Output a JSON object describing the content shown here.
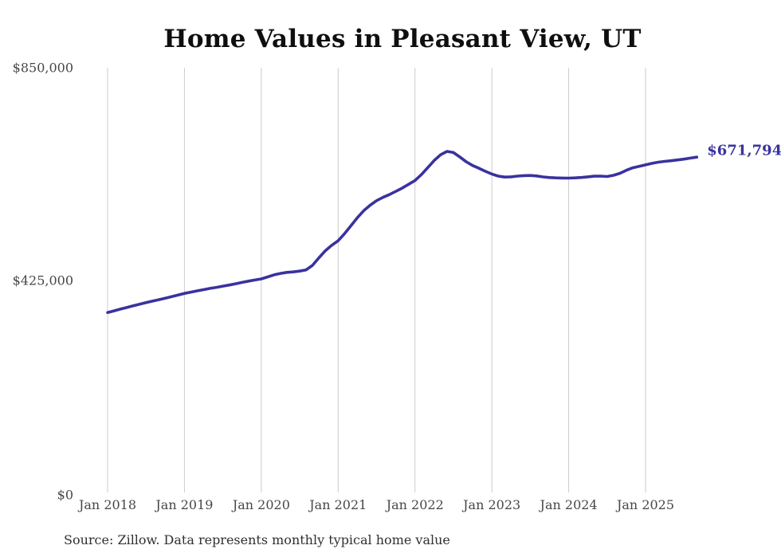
{
  "title": "Home Values in Pleasant View, UT",
  "end_label": "$671,794",
  "source_note": "Source: Zillow. Data represents monthly typical home value",
  "y_axis": {
    "labels": [
      "$850,000",
      "$425,000",
      "$0"
    ],
    "values": [
      850000,
      425000,
      0
    ]
  },
  "x_axis": {
    "labels": [
      "Jan 2018",
      "Jan 2019",
      "Jan 2020",
      "Jan 2021",
      "Jan 2022",
      "Jan 2023",
      "Jan 2024",
      "Jan 2025"
    ]
  },
  "colors": {
    "line": "#39329e",
    "grid": "#cccccc",
    "axis_text": "#474747",
    "title_text": "#0f0f0f",
    "source_text": "#303030",
    "background": "#ffffff"
  },
  "chart_data": {
    "type": "line",
    "title": "Home Values in Pleasant View, UT",
    "series_name": "Monthly typical home value",
    "xlabel": "",
    "ylabel": "",
    "ylim": [
      0,
      850000
    ],
    "yticks": [
      0,
      425000,
      850000
    ],
    "ytick_labels": [
      "$0",
      "$425,000",
      "$850,000"
    ],
    "xtick_labels": [
      "Jan 2018",
      "Jan 2019",
      "Jan 2020",
      "Jan 2021",
      "Jan 2022",
      "Jan 2023",
      "Jan 2024",
      "Jan 2025"
    ],
    "grid": "vertical-only",
    "legend": "none",
    "last_point_label": "$671,794",
    "x": [
      "2018-01",
      "2018-02",
      "2018-03",
      "2018-04",
      "2018-05",
      "2018-06",
      "2018-07",
      "2018-08",
      "2018-09",
      "2018-10",
      "2018-11",
      "2018-12",
      "2019-01",
      "2019-02",
      "2019-03",
      "2019-04",
      "2019-05",
      "2019-06",
      "2019-07",
      "2019-08",
      "2019-09",
      "2019-10",
      "2019-11",
      "2019-12",
      "2020-01",
      "2020-02",
      "2020-03",
      "2020-04",
      "2020-05",
      "2020-06",
      "2020-07",
      "2020-08",
      "2020-09",
      "2020-10",
      "2020-11",
      "2020-12",
      "2021-01",
      "2021-02",
      "2021-03",
      "2021-04",
      "2021-05",
      "2021-06",
      "2021-07",
      "2021-08",
      "2021-09",
      "2021-10",
      "2021-11",
      "2021-12",
      "2022-01",
      "2022-02",
      "2022-03",
      "2022-04",
      "2022-05",
      "2022-06",
      "2022-07",
      "2022-08",
      "2022-09",
      "2022-10",
      "2022-11",
      "2022-12",
      "2023-01",
      "2023-02",
      "2023-03",
      "2023-04",
      "2023-05",
      "2023-06",
      "2023-07",
      "2023-08",
      "2023-09",
      "2023-10",
      "2023-11",
      "2023-12",
      "2024-01",
      "2024-02",
      "2024-03",
      "2024-04",
      "2024-05",
      "2024-06",
      "2024-07",
      "2024-08",
      "2024-09",
      "2024-10",
      "2024-11",
      "2024-12",
      "2025-01",
      "2025-02",
      "2025-03",
      "2025-04",
      "2025-05",
      "2025-06",
      "2025-07",
      "2025-08",
      "2025-09"
    ],
    "values": [
      362000,
      365300,
      368700,
      372000,
      375300,
      378500,
      381600,
      384600,
      387500,
      390300,
      393500,
      396800,
      400000,
      402600,
      405100,
      407600,
      410000,
      412200,
      414500,
      416800,
      419300,
      422000,
      424500,
      426800,
      429000,
      433000,
      437000,
      440000,
      442000,
      443000,
      444500,
      447000,
      456000,
      471000,
      485000,
      496000,
      505000,
      519000,
      535000,
      551000,
      565000,
      576000,
      585000,
      591500,
      597000,
      603500,
      610000,
      617500,
      625000,
      637000,
      651000,
      665000,
      676500,
      683200,
      681000,
      672000,
      662500,
      655000,
      649500,
      643500,
      638000,
      634000,
      632000,
      632500,
      634000,
      634800,
      635200,
      634200,
      632400,
      631000,
      630400,
      630100,
      630000,
      630400,
      631200,
      632500,
      633800,
      634000,
      633200,
      635500,
      639500,
      645500,
      650500,
      653500,
      656300,
      659300,
      661800,
      663300,
      664600,
      666200,
      667800,
      669800,
      671794
    ]
  }
}
